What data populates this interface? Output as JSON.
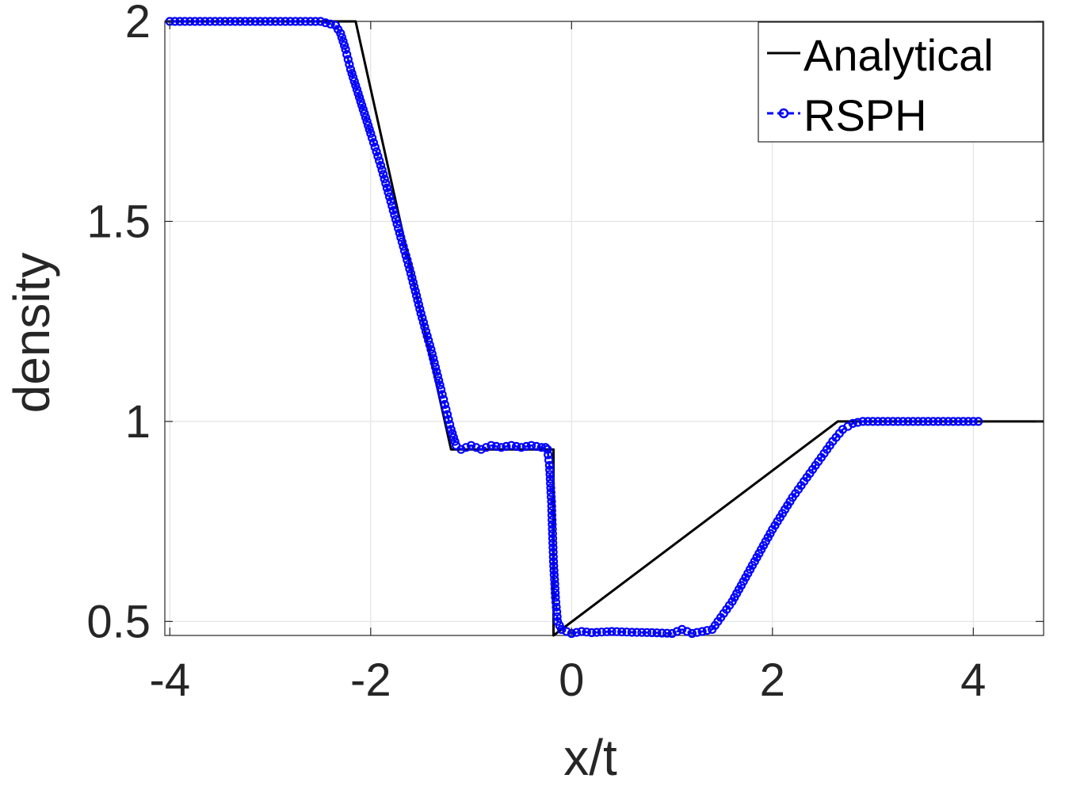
{
  "chart_data": {
    "type": "line",
    "title": "",
    "xlabel": "x/t",
    "ylabel": "density",
    "xlim": [
      -4.05,
      4.7
    ],
    "ylim": [
      0.465,
      2.0
    ],
    "grid": true,
    "legend_position": "top-right",
    "x_ticks": [
      -4,
      -2,
      0,
      2,
      4
    ],
    "x_tick_labels": [
      "-4",
      "-2",
      "0",
      "2",
      "4"
    ],
    "y_ticks": [
      0.5,
      1,
      1.5,
      2
    ],
    "y_tick_labels": [
      "0.5",
      "1",
      "1.5",
      "2"
    ],
    "series": [
      {
        "name": "Analytical",
        "color": "#000000",
        "style": "solid",
        "x": [
          -4.05,
          -2.15,
          -1.2,
          -0.18,
          -0.18,
          -0.18,
          2.65,
          4.7
        ],
        "y": [
          2.0,
          2.0,
          0.93,
          0.93,
          0.93,
          0.465,
          1.0,
          1.0
        ]
      },
      {
        "name": "RSPH",
        "color": "#0000ff",
        "style": "dashed",
        "marker": "circle",
        "x": [
          -4.0,
          -3.6,
          -3.2,
          -2.8,
          -2.5,
          -2.35,
          -2.3,
          -2.25,
          -2.2,
          -2.15,
          -2.1,
          -2.05,
          -2.0,
          -1.9,
          -1.8,
          -1.7,
          -1.6,
          -1.5,
          -1.4,
          -1.3,
          -1.25,
          -1.2,
          -1.15,
          -1.1,
          -1.0,
          -0.9,
          -0.8,
          -0.7,
          -0.6,
          -0.5,
          -0.4,
          -0.3,
          -0.26,
          -0.24,
          -0.22,
          -0.2,
          -0.18,
          -0.16,
          -0.14,
          -0.1,
          0.0,
          0.1,
          0.2,
          0.4,
          0.6,
          0.8,
          1.0,
          1.1,
          1.2,
          1.3,
          1.4,
          1.6,
          1.8,
          2.0,
          2.2,
          2.4,
          2.6,
          2.7,
          2.8,
          2.9,
          3.2,
          3.6,
          4.0,
          4.05
        ],
        "y": [
          2.0,
          2.0,
          2.0,
          2.0,
          2.0,
          1.99,
          1.97,
          1.93,
          1.88,
          1.84,
          1.8,
          1.76,
          1.72,
          1.64,
          1.55,
          1.46,
          1.37,
          1.27,
          1.18,
          1.08,
          1.03,
          0.98,
          0.94,
          0.93,
          0.94,
          0.93,
          0.94,
          0.935,
          0.94,
          0.935,
          0.94,
          0.935,
          0.935,
          0.93,
          0.89,
          0.8,
          0.65,
          0.56,
          0.5,
          0.48,
          0.47,
          0.475,
          0.472,
          0.475,
          0.473,
          0.472,
          0.47,
          0.48,
          0.47,
          0.475,
          0.48,
          0.55,
          0.64,
          0.73,
          0.81,
          0.88,
          0.95,
          0.98,
          0.995,
          1.0,
          1.0,
          1.0,
          1.0,
          1.0
        ]
      }
    ]
  }
}
